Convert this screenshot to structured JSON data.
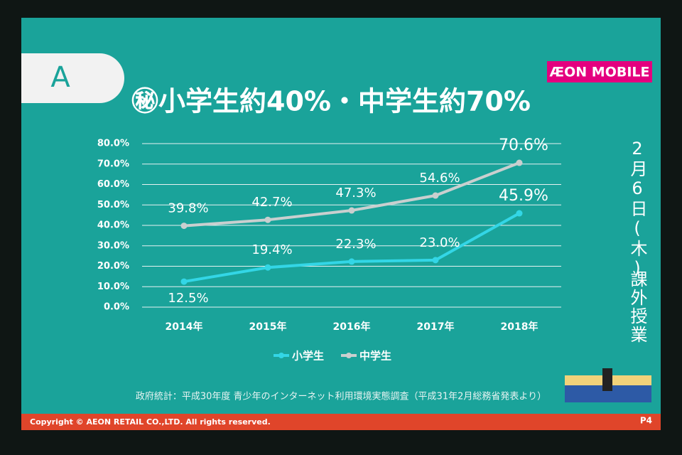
{
  "slide": {
    "tab": "A",
    "title": "㊙小学生約40%・中学生約70%",
    "logo": "ÆON MOBILE",
    "date": "2月6日(木)",
    "event": "課外授業",
    "source": "政府統計：平成30年度 青少年のインターネット利用環境実態調査（平成31年2月総務省発表より）",
    "copyright": "Copyright © AEON RETAIL CO.,LTD. All rights reserved.",
    "page": "P4"
  },
  "chart_data": {
    "type": "line",
    "categories": [
      "2014年",
      "2015年",
      "2016年",
      "2017年",
      "2018年"
    ],
    "series": [
      {
        "name": "小学生",
        "color": "#33d6e6",
        "values": [
          12.5,
          19.4,
          22.3,
          23.0,
          45.9
        ],
        "value_labels": [
          "12.5%",
          "19.4%",
          "22.3%",
          "23.0%",
          "45.9%"
        ]
      },
      {
        "name": "中学生",
        "color": "#c9cfcf",
        "values": [
          39.8,
          42.7,
          47.3,
          54.6,
          70.6
        ],
        "value_labels": [
          "39.8%",
          "42.7%",
          "47.3%",
          "54.6%",
          "70.6%"
        ]
      }
    ],
    "ylim": [
      0,
      80
    ],
    "yticks": [
      {
        "value": 0,
        "label": "0.0%"
      },
      {
        "value": 10,
        "label": "10.0%"
      },
      {
        "value": 20,
        "label": "20.0%"
      },
      {
        "value": 30,
        "label": "30.0%"
      },
      {
        "value": 40,
        "label": "40.0%"
      },
      {
        "value": 50,
        "label": "50.0%"
      },
      {
        "value": 60,
        "label": "60.0%"
      },
      {
        "value": 70,
        "label": "70.0%"
      },
      {
        "value": 80,
        "label": "80.0%"
      }
    ],
    "grid": true,
    "legend": "bottom"
  }
}
